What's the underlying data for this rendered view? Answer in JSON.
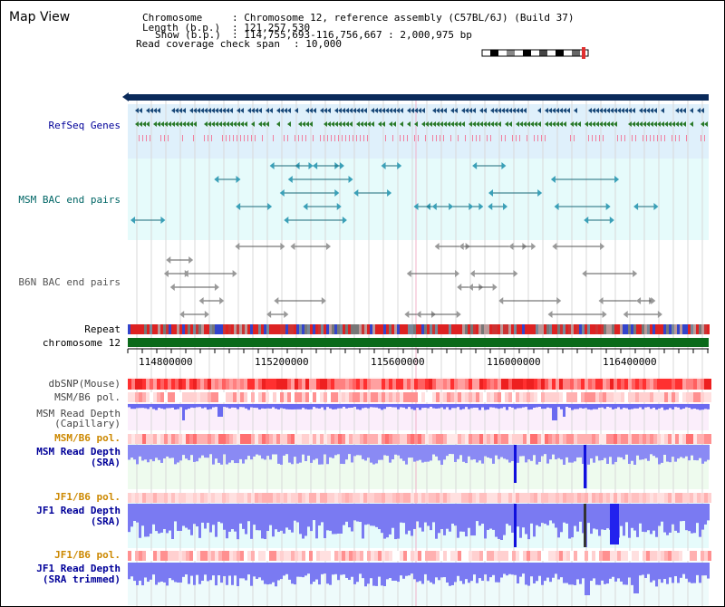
{
  "app": {
    "title": "Map View"
  },
  "info": {
    "chromosome_key": "Chromosome",
    "chromosome_val": ": Chromosome 12, reference assembly (C57BL/6J) (Build 37)",
    "length_key": "Length (b.p.)",
    "length_val": ": 121,257,530",
    "show_key": "Show (b.p.)",
    "show_val": ": 114,755,693-116,756,667 : 2,000,975 bp",
    "coverage_key": "Read coverage check span",
    "coverage_val": ": 10,000"
  },
  "tracks": {
    "refseq": "RefSeq Genes",
    "msm_bac": "MSM BAC end pairs",
    "b6n_bac": "B6N BAC end pairs",
    "repeat": "Repeat",
    "chromosome": "chromosome 12",
    "dbsnp": "dbSNP(Mouse)",
    "msm_pol_1": "MSM/B6 pol.",
    "msm_depth_cap_1": "MSM Read Depth",
    "msm_depth_cap_2": "(Capillary)",
    "msm_pol_2": "MSM/B6 pol.",
    "msm_depth_sra_1": "MSM Read Depth",
    "msm_depth_sra_2": "(SRA)",
    "jf1_pol_1": "JF1/B6 pol.",
    "jf1_depth_sra_1": "JF1 Read Depth",
    "jf1_depth_sra_2": "(SRA)",
    "jf1_pol_2": "JF1/B6 pol.",
    "jf1_depth_trim_1": "JF1 Read Depth",
    "jf1_depth_trim_2": "(SRA trimmed)"
  },
  "axis": {
    "ticks": [
      "114800000",
      "115200000",
      "115600000",
      "116000000",
      "116400000"
    ]
  },
  "colors": {
    "refseq_label": "#000099",
    "msm_label": "#006666",
    "b6n_label": "#555555",
    "msm_pol_orange": "#cc8800",
    "jf1_pol_orange": "#cc8800",
    "depth_label": "#000099"
  }
}
